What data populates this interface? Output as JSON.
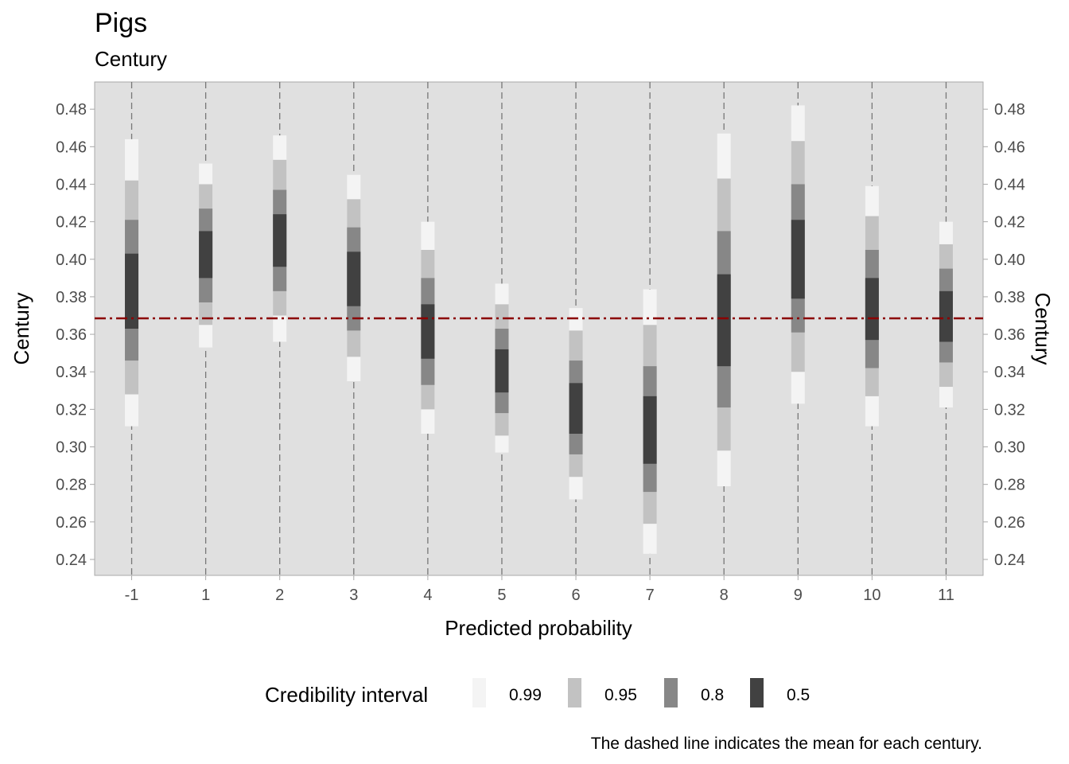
{
  "chart_data": {
    "type": "interval",
    "title": "Pigs",
    "subtitle": "Century",
    "xlabel": "Predicted probability",
    "ylabel": "Century",
    "ylabel_right": "Century",
    "caption": "The dashed line indicates the mean for each century.",
    "categories": [
      "-1",
      "1",
      "2",
      "3",
      "4",
      "5",
      "6",
      "7",
      "8",
      "9",
      "10",
      "11"
    ],
    "ylim": [
      0.2315,
      0.4945
    ],
    "yticks": [
      0.24,
      0.26,
      0.28,
      0.3,
      0.32,
      0.34,
      0.36,
      0.38,
      0.4,
      0.42,
      0.44,
      0.46,
      0.48
    ],
    "ytick_labels": [
      "0.24",
      "0.26",
      "0.28",
      "0.30",
      "0.32",
      "0.34",
      "0.36",
      "0.38",
      "0.40",
      "0.42",
      "0.44",
      "0.46",
      "0.48"
    ],
    "mean_line": 0.3685,
    "mean_line_color": "#8b0000",
    "panel_background": "#e0e0e0",
    "grid": false,
    "legend": {
      "title": "Credibility interval",
      "position": "bottom",
      "levels": [
        {
          "label": "0.99",
          "color": "#f4f4f4"
        },
        {
          "label": "0.95",
          "color": "#c2c2c2"
        },
        {
          "label": "0.8",
          "color": "#878787"
        },
        {
          "label": "0.5",
          "color": "#414141"
        }
      ]
    },
    "intervals": [
      {
        "x": "-1",
        "i99": [
          0.311,
          0.464
        ],
        "i95": [
          0.328,
          0.442
        ],
        "i80": [
          0.346,
          0.421
        ],
        "i50": [
          0.363,
          0.403
        ]
      },
      {
        "x": "1",
        "i99": [
          0.353,
          0.451
        ],
        "i95": [
          0.365,
          0.44
        ],
        "i80": [
          0.377,
          0.427
        ],
        "i50": [
          0.39,
          0.415
        ]
      },
      {
        "x": "2",
        "i99": [
          0.356,
          0.466
        ],
        "i95": [
          0.37,
          0.453
        ],
        "i80": [
          0.383,
          0.437
        ],
        "i50": [
          0.396,
          0.424
        ]
      },
      {
        "x": "3",
        "i99": [
          0.335,
          0.445
        ],
        "i95": [
          0.348,
          0.432
        ],
        "i80": [
          0.362,
          0.417
        ],
        "i50": [
          0.375,
          0.404
        ]
      },
      {
        "x": "4",
        "i99": [
          0.307,
          0.42
        ],
        "i95": [
          0.32,
          0.405
        ],
        "i80": [
          0.333,
          0.39
        ],
        "i50": [
          0.347,
          0.376
        ]
      },
      {
        "x": "5",
        "i99": [
          0.297,
          0.387
        ],
        "i95": [
          0.306,
          0.376
        ],
        "i80": [
          0.318,
          0.363
        ],
        "i50": [
          0.329,
          0.352
        ]
      },
      {
        "x": "6",
        "i99": [
          0.272,
          0.374
        ],
        "i95": [
          0.284,
          0.362
        ],
        "i80": [
          0.296,
          0.346
        ],
        "i50": [
          0.307,
          0.334
        ]
      },
      {
        "x": "7",
        "i99": [
          0.243,
          0.384
        ],
        "i95": [
          0.259,
          0.365
        ],
        "i80": [
          0.276,
          0.343
        ],
        "i50": [
          0.291,
          0.327
        ]
      },
      {
        "x": "8",
        "i99": [
          0.279,
          0.467
        ],
        "i95": [
          0.298,
          0.443
        ],
        "i80": [
          0.321,
          0.415
        ],
        "i50": [
          0.343,
          0.392
        ]
      },
      {
        "x": "9",
        "i99": [
          0.323,
          0.482
        ],
        "i95": [
          0.34,
          0.463
        ],
        "i80": [
          0.361,
          0.44
        ],
        "i50": [
          0.379,
          0.421
        ]
      },
      {
        "x": "10",
        "i99": [
          0.311,
          0.439
        ],
        "i95": [
          0.327,
          0.423
        ],
        "i80": [
          0.342,
          0.405
        ],
        "i50": [
          0.357,
          0.39
        ]
      },
      {
        "x": "11",
        "i99": [
          0.321,
          0.42
        ],
        "i95": [
          0.332,
          0.408
        ],
        "i80": [
          0.345,
          0.395
        ],
        "i50": [
          0.356,
          0.383
        ]
      }
    ]
  }
}
